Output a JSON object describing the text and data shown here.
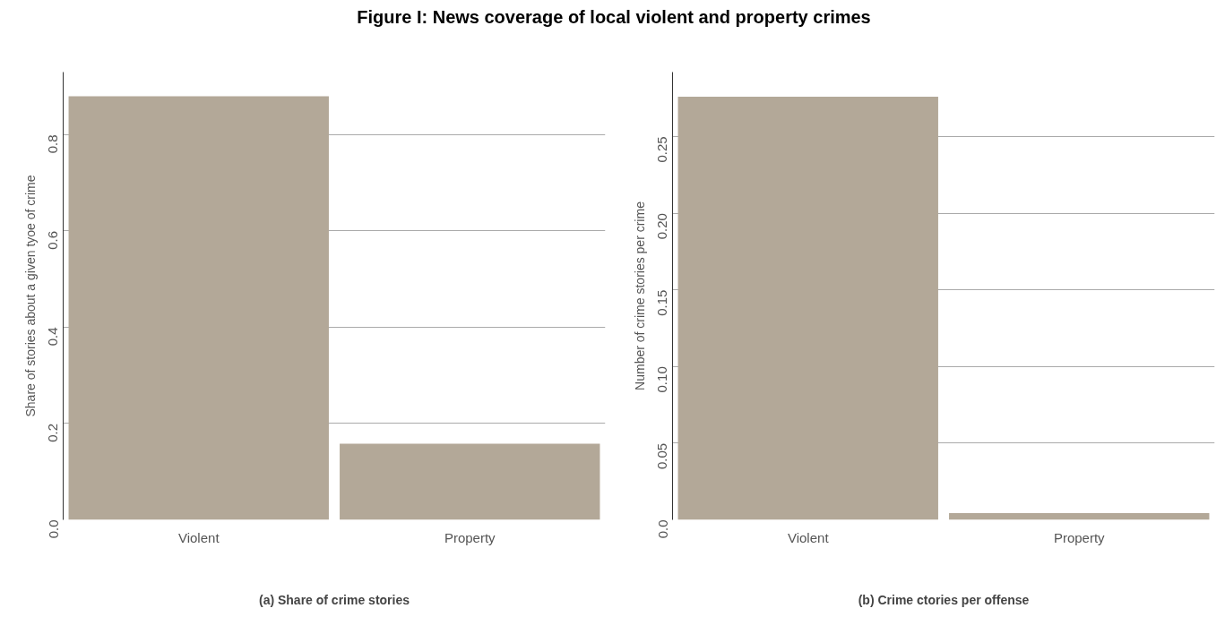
{
  "chart_data": [
    {
      "type": "bar",
      "title": "Figure I: News coverage of local violent and property crimes",
      "xlabel": "(a) Share of crime stories",
      "ylabel": "Share of stories about a given tyoe of crime",
      "categories": [
        "Violent",
        "Property"
      ],
      "values": [
        0.88,
        0.158
      ],
      "color": "#b3a898",
      "ylim": [
        0,
        0.93
      ],
      "yticks": [
        {
          "value": 0,
          "label": "0.0"
        },
        0.2,
        0.4,
        0.6,
        0.8
      ],
      "grid": "y"
    },
    {
      "type": "bar",
      "xlabel": "(b) Crime ctories per offense",
      "ylabel": "Number of crime stories per crime",
      "categories": [
        "Violent",
        "Property"
      ],
      "values": [
        0.276,
        0.0044
      ],
      "color": "#b3a898",
      "ylim": [
        0,
        0.292
      ],
      "yticks": [
        {
          "value": 0,
          "label": "0.0"
        },
        0.05,
        {
          "value": 0.1,
          "label": "0.10"
        },
        0.15,
        {
          "value": 0.2,
          "label": "0.20"
        },
        0.25
      ],
      "grid": "y"
    }
  ]
}
